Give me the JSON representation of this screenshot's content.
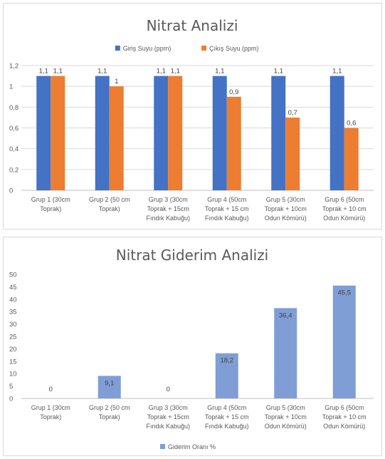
{
  "colors": {
    "blue": "#4472c4",
    "orange": "#ed7d31",
    "light_blue": "#7f9ed6",
    "grid": "#d9d9d9",
    "axis": "#bfbfbf"
  },
  "chart_data": [
    {
      "type": "bar",
      "title": "Nitrat Analizi",
      "categories": [
        [
          "Grup 1 (30cm",
          "Toprak)"
        ],
        [
          "Grup 2 (50 cm",
          "Toprak)"
        ],
        [
          "Grup 3 (30cm",
          "Toprak + 15cm",
          "Fındık Kabuğu)"
        ],
        [
          "Grup 4 (50cm",
          "Toprak + 15 cm",
          "Fındık Kabuğu)"
        ],
        [
          "Grup 5 (30cm",
          "Toprak + 10cm",
          "Odun Kömürü)"
        ],
        [
          "Grup 6 (50cm",
          "Toprak + 10 cm",
          "Odun Kömürü)"
        ]
      ],
      "series": [
        {
          "name": "Giriş Suyu (ppm)",
          "color": "#4472c4",
          "values": [
            1.1,
            1.1,
            1.1,
            1.1,
            1.1,
            1.1
          ],
          "labels": [
            "1,1",
            "1,1",
            "1,1",
            "1,1",
            "1,1",
            "1,1"
          ]
        },
        {
          "name": "Çıkış Suyu (ppm)",
          "color": "#ed7d31",
          "values": [
            1.1,
            1.0,
            1.1,
            0.9,
            0.7,
            0.6
          ],
          "labels": [
            "1,1",
            "1",
            "1,1",
            "0,9",
            "0,7",
            "0,6"
          ]
        }
      ],
      "ylim": [
        0,
        1.2
      ],
      "yticks": [
        0,
        0.2,
        0.4,
        0.6,
        0.8,
        1,
        1.2
      ],
      "ytick_labels": [
        "0",
        "0,2",
        "0,4",
        "0,6",
        "0,8",
        "1",
        "1,2"
      ],
      "grid": true,
      "legend_position": "top-center"
    },
    {
      "type": "bar",
      "title": "Nitrat Giderim Analizi",
      "categories": [
        [
          "Grup 1 (30cm",
          "Toprak)"
        ],
        [
          "Grup 2 (50 cm",
          "Toprak)"
        ],
        [
          "Grup 3 (30cm",
          "Toprak + 15cm",
          "Fındık Kabuğu)"
        ],
        [
          "Grup 4 (50cm",
          "Toprak + 15 cm",
          "Fındık Kabuğu)"
        ],
        [
          "Grup 5 (30cm",
          "Toprak + 10cm",
          "Odun Kömürü)"
        ],
        [
          "Grup 6 (50cm",
          "Toprak + 10 cm",
          "Odun Kömürü)"
        ]
      ],
      "series": [
        {
          "name": "Giderim Oranı %",
          "color": "#7f9ed6",
          "values": [
            0,
            9.1,
            0,
            18.2,
            36.4,
            45.5
          ],
          "labels": [
            "0",
            "9,1",
            "0",
            "18,2",
            "36,4",
            "45,5"
          ]
        }
      ],
      "ylim": [
        0,
        50
      ],
      "yticks": [
        0,
        5,
        10,
        15,
        20,
        25,
        30,
        35,
        40,
        45,
        50
      ],
      "ytick_labels": [
        "0",
        "5",
        "10",
        "15",
        "20",
        "25",
        "30",
        "35",
        "40",
        "45",
        "50"
      ],
      "grid": false,
      "legend_position": "bottom-center"
    }
  ]
}
